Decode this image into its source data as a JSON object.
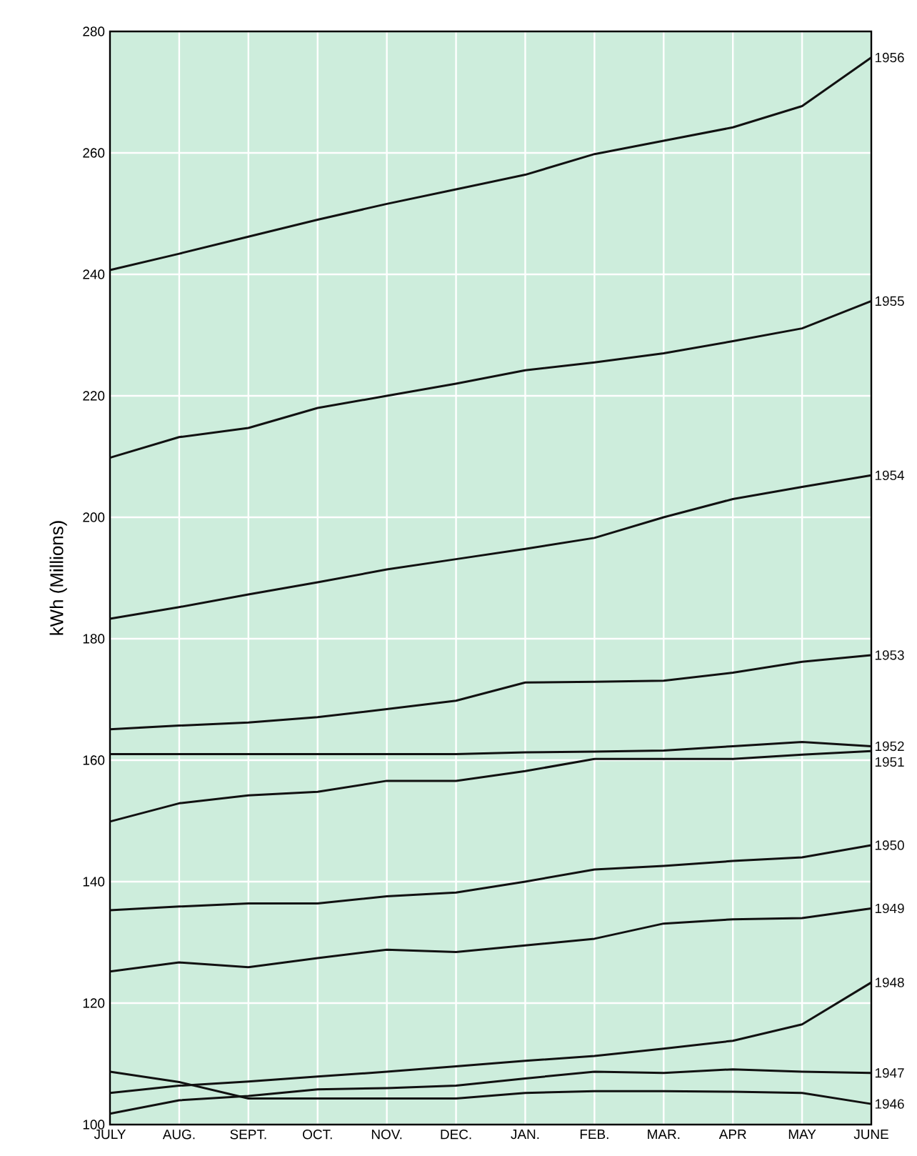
{
  "chart_data": {
    "type": "line",
    "ylabel": "kWh (Millions)",
    "categories": [
      "JULY",
      "AUG.",
      "SEPT.",
      "OCT.",
      "NOV.",
      "DEC.",
      "JAN.",
      "FEB.",
      "MAR.",
      "APR",
      "MAY",
      "JUNE"
    ],
    "ylim": [
      100,
      280
    ],
    "yticks": [
      100,
      120,
      140,
      160,
      180,
      200,
      220,
      240,
      260,
      280
    ],
    "grid": true,
    "legend": false,
    "marker": "none",
    "line_style": "solid",
    "series": [
      {
        "name": "1956",
        "color": "#111111",
        "values": [
          240.7,
          243.4,
          246.2,
          249,
          251.6,
          254,
          256.4,
          259.8,
          262,
          264.2,
          267.7,
          275.7
        ]
      },
      {
        "name": "1955",
        "color": "#111111",
        "values": [
          209.8,
          213.2,
          214.7,
          218,
          220,
          222,
          224.2,
          225.5,
          227,
          229,
          231.1,
          235.6
        ]
      },
      {
        "name": "1954",
        "color": "#111111",
        "values": [
          183.3,
          185.2,
          187.3,
          189.3,
          191.4,
          193.1,
          194.8,
          196.6,
          200,
          203,
          205,
          206.9
        ]
      },
      {
        "name": "1953",
        "color": "#111111",
        "values": [
          165.1,
          165.7,
          166.2,
          167.1,
          168.4,
          169.8,
          172.8,
          172.9,
          173.1,
          174.4,
          176.2,
          177.3
        ]
      },
      {
        "name": "1952",
        "color": "#111111",
        "values": [
          161,
          161,
          161,
          161,
          161,
          161,
          161.3,
          161.4,
          161.6,
          162.3,
          163,
          162.3
        ]
      },
      {
        "name": "1951",
        "color": "#111111",
        "values": [
          149.9,
          152.9,
          154.2,
          154.8,
          156.6,
          156.6,
          158.2,
          160.2,
          160.2,
          160.2,
          160.9,
          161.5
        ]
      },
      {
        "name": "1950",
        "color": "#111111",
        "values": [
          135.3,
          135.9,
          136.4,
          136.4,
          137.6,
          138.2,
          140,
          142,
          142.6,
          143.4,
          144,
          146
        ]
      },
      {
        "name": "1949",
        "color": "#111111",
        "values": [
          125.2,
          126.7,
          125.9,
          127.4,
          128.8,
          128.4,
          129.5,
          130.6,
          133.1,
          133.8,
          134,
          135.6
        ]
      },
      {
        "name": "1948",
        "color": "#111111",
        "values": [
          105.2,
          106.4,
          107.1,
          107.9,
          108.7,
          109.6,
          110.5,
          111.3,
          112.5,
          113.8,
          116.5,
          123.4
        ]
      },
      {
        "name": "1947",
        "color": "#111111",
        "values": [
          101.8,
          104,
          104.7,
          105.8,
          106,
          106.4,
          107.6,
          108.7,
          108.5,
          109.1,
          108.7,
          108.5
        ]
      },
      {
        "name": "1946",
        "color": "#111111",
        "values": [
          108.7,
          107,
          104.3,
          104.3,
          104.3,
          104.3,
          105.2,
          105.5,
          105.5,
          105.4,
          105.2,
          103.4
        ]
      }
    ]
  }
}
